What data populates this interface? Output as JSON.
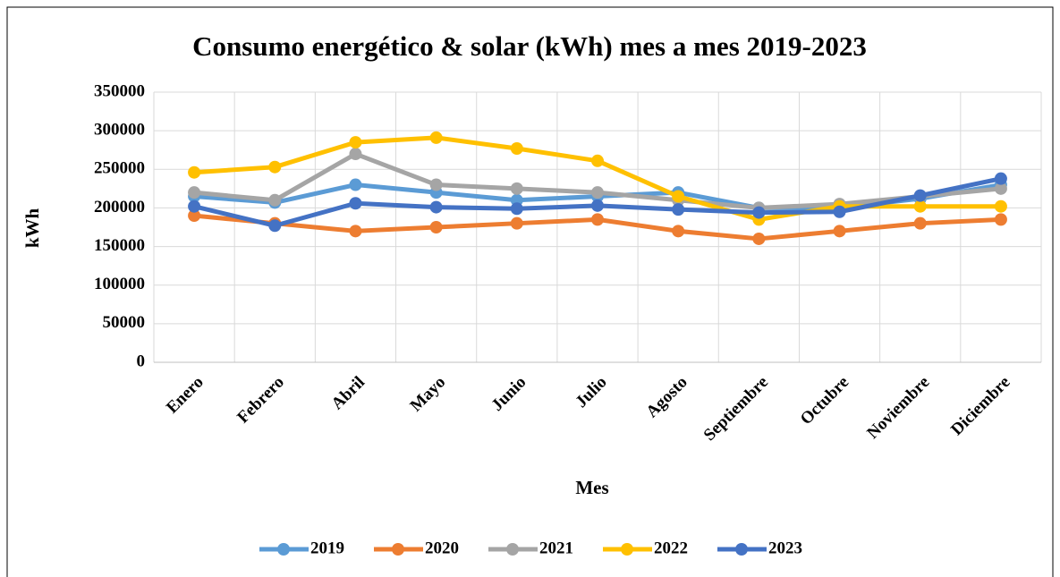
{
  "chart_data": {
    "type": "line",
    "title": "Consumo energético & solar (kWh) mes a mes 2019-2023",
    "xlabel": "Mes",
    "ylabel": "kWh",
    "categories": [
      "Enero",
      "Febrero",
      "Abril",
      "Mayo",
      "Junio",
      "Julio",
      "Agosto",
      "Septiembre",
      "Octubre",
      "Noviembre",
      "Diciembre"
    ],
    "series": [
      {
        "name": "2019",
        "color": "#5b9bd5",
        "values": [
          215000,
          207000,
          230000,
          220000,
          210000,
          215000,
          220000,
          200000,
          200000,
          212000,
          230000
        ]
      },
      {
        "name": "2020",
        "color": "#ed7d31",
        "values": [
          190000,
          180000,
          170000,
          175000,
          180000,
          185000,
          170000,
          160000,
          170000,
          180000,
          185000
        ]
      },
      {
        "name": "2021",
        "color": "#a5a5a5",
        "values": [
          220000,
          210000,
          270000,
          230000,
          225000,
          220000,
          210000,
          200000,
          205000,
          215000,
          225000
        ]
      },
      {
        "name": "2022",
        "color": "#ffc000",
        "values": [
          246000,
          253000,
          285000,
          291000,
          277000,
          261000,
          215000,
          185000,
          202000,
          202000,
          202000
        ]
      },
      {
        "name": "2023",
        "color": "#4472c4",
        "values": [
          202000,
          177000,
          206000,
          201000,
          199000,
          203000,
          198000,
          194000,
          195000,
          216000,
          238000
        ]
      }
    ],
    "ylim": [
      0,
      350000
    ],
    "yticks": [
      0,
      50000,
      100000,
      150000,
      200000,
      250000,
      300000,
      350000
    ],
    "grid": true,
    "legend": "bottom"
  }
}
